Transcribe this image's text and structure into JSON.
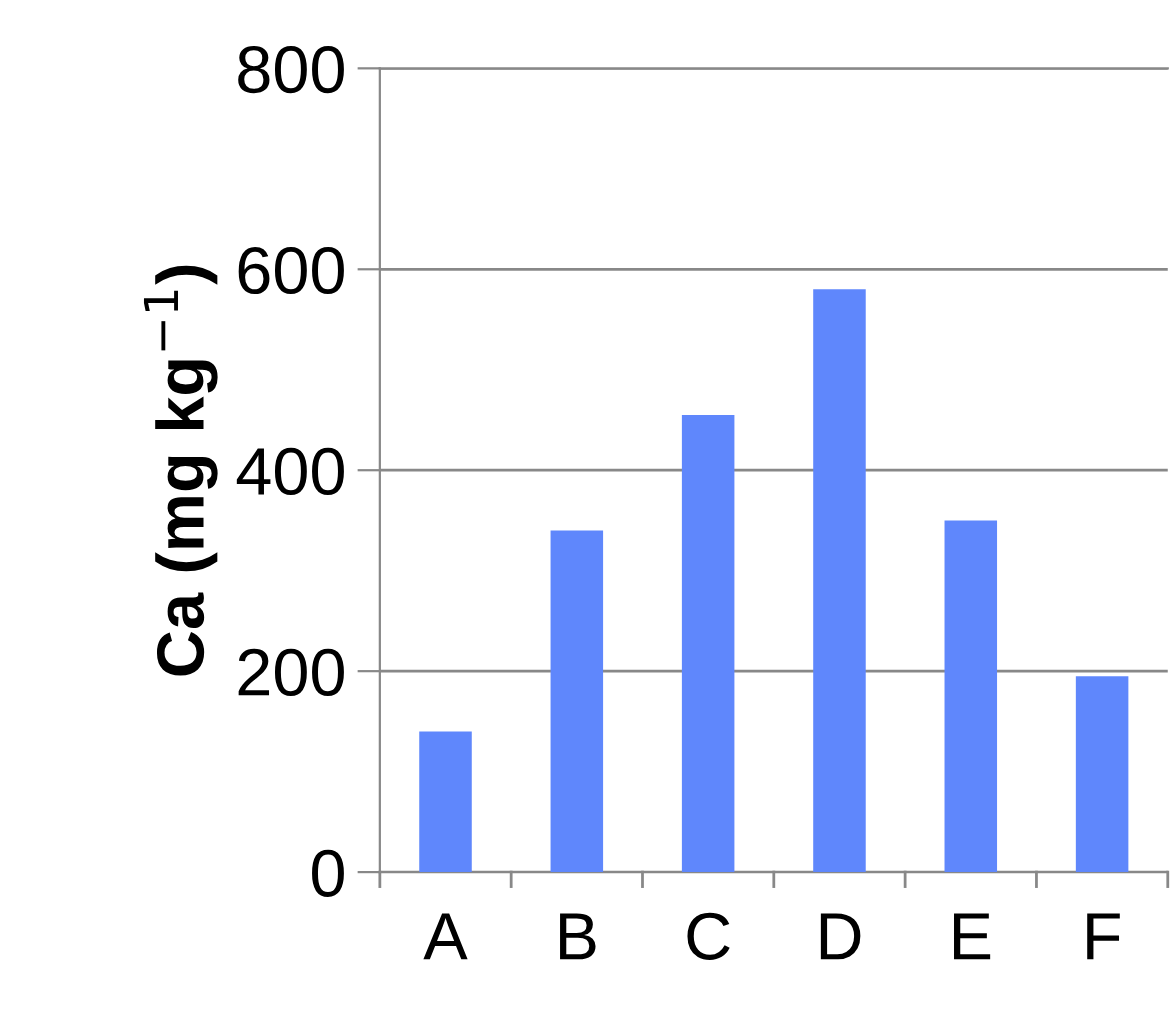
{
  "chart_data": {
    "type": "bar",
    "ylabel": "Ca (mg kg$^{−1}$)",
    "categories": [
      "A",
      "B",
      "C",
      "D",
      "E",
      "F"
    ],
    "values": [
      140,
      340,
      455,
      580,
      350,
      195
    ],
    "color": "#5f87fc",
    "ylim": [
      0,
      800
    ],
    "yticks": [
      0,
      200,
      400,
      600,
      800
    ],
    "grid": "y",
    "legend": false
  }
}
